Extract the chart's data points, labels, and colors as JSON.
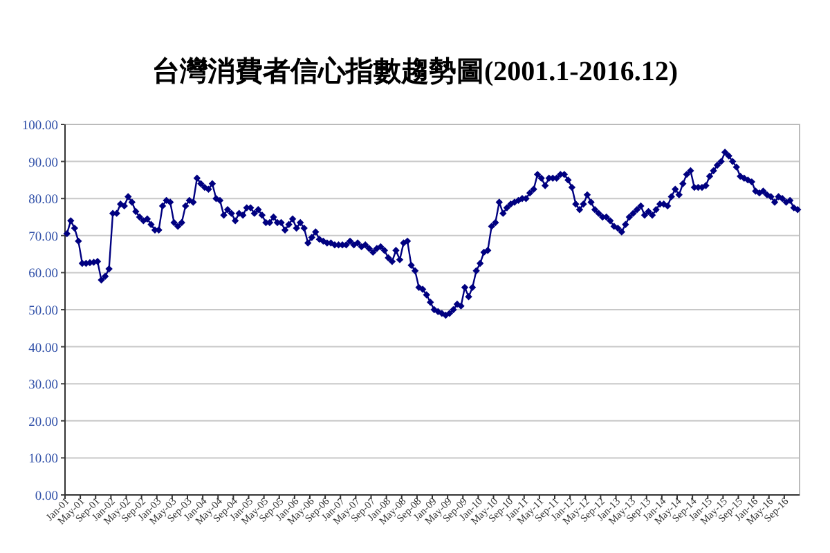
{
  "chart_data": {
    "type": "line",
    "title": "台灣消費者信心指數趨勢圖(2001.1-2016.12)",
    "categories": [
      "Jan-01",
      null,
      null,
      null,
      "May-01",
      null,
      null,
      null,
      "Sep-01",
      null,
      null,
      null,
      "Jan-02",
      null,
      null,
      null,
      "May-02",
      null,
      null,
      null,
      "Sep-02",
      null,
      null,
      null,
      "Jan-03",
      null,
      null,
      null,
      "May-03",
      null,
      null,
      null,
      "Sep-03",
      null,
      null,
      null,
      "Jan-04",
      null,
      null,
      null,
      "May-04",
      null,
      null,
      null,
      "Sep-04",
      null,
      null,
      null,
      "Jan-05",
      null,
      null,
      null,
      "May-05",
      null,
      null,
      null,
      "Sep-05",
      null,
      null,
      null,
      "Jan-06",
      null,
      null,
      null,
      "May-06",
      null,
      null,
      null,
      "Sep-06",
      null,
      null,
      null,
      "Jan-07",
      null,
      null,
      null,
      "May-07",
      null,
      null,
      null,
      "Sep-07",
      null,
      null,
      null,
      "Jan-08",
      null,
      null,
      null,
      "May-08",
      null,
      null,
      null,
      "Sep-08",
      null,
      null,
      null,
      "Jan-09",
      null,
      null,
      null,
      "May-09",
      null,
      null,
      null,
      "Sep-09",
      null,
      null,
      null,
      "Jan-10",
      null,
      null,
      null,
      "May-10",
      null,
      null,
      null,
      "Sep-10",
      null,
      null,
      null,
      "Jan-11",
      null,
      null,
      null,
      "May-11",
      null,
      null,
      null,
      "Sep-11",
      null,
      null,
      null,
      "Jan-12",
      null,
      null,
      null,
      "May-12",
      null,
      null,
      null,
      "Sep-12",
      null,
      null,
      null,
      "Jan-13",
      null,
      null,
      null,
      "May-13",
      null,
      null,
      null,
      "Sep-13",
      null,
      null,
      null,
      "Jan-14",
      null,
      null,
      null,
      "May-14",
      null,
      null,
      null,
      "Sep-14",
      null,
      null,
      null,
      "Jan-15",
      null,
      null,
      null,
      "May-15",
      null,
      null,
      null,
      "Sep-15",
      null,
      null,
      null,
      "Jan-16",
      null,
      null,
      null,
      "May-16",
      null,
      null,
      null,
      "Sep-16",
      null,
      null,
      null
    ],
    "values": [
      70.5,
      74,
      72,
      68.5,
      62.5,
      62.5,
      62.7,
      62.8,
      63,
      58,
      59,
      61,
      76,
      76,
      78.5,
      78,
      80.5,
      79,
      76.5,
      75,
      74,
      74.5,
      73,
      71.5,
      71.5,
      78,
      79.5,
      79,
      73.5,
      72.5,
      73.5,
      78,
      79.5,
      79,
      85.5,
      84,
      83,
      82.5,
      84,
      80,
      79.5,
      75.5,
      77,
      76,
      74,
      76,
      75.5,
      77.5,
      77.5,
      76,
      77,
      75.5,
      73.5,
      73.5,
      75,
      73.5,
      73.5,
      71.5,
      73,
      74.5,
      72,
      73.5,
      72,
      68,
      69.5,
      71,
      69,
      68.5,
      68,
      68,
      67.5,
      67.5,
      67.5,
      67.5,
      68.5,
      67.5,
      68,
      67,
      67.5,
      66.5,
      65.5,
      66.5,
      67,
      66,
      64,
      63,
      66,
      63.5,
      68,
      68.5,
      62,
      60.5,
      56,
      55.5,
      54,
      52,
      50,
      49.5,
      49,
      48.5,
      49,
      50,
      51.5,
      51,
      56,
      53.5,
      56,
      60.5,
      62.5,
      65.5,
      66,
      72.5,
      73.5,
      79,
      76,
      77.5,
      78.5,
      79,
      79.5,
      80,
      80,
      81.5,
      82.5,
      86.5,
      85.5,
      83.5,
      85.5,
      85.5,
      85.5,
      86.5,
      86.5,
      85,
      83,
      78.5,
      77,
      78.5,
      81,
      79,
      77,
      76,
      75,
      75,
      74,
      72.5,
      72,
      71,
      73,
      75,
      76,
      77,
      78,
      75.5,
      76.5,
      75.5,
      77,
      78.5,
      78.5,
      78,
      80.5,
      82.5,
      81,
      84,
      86.5,
      87.5,
      83,
      83,
      83,
      83.5,
      86,
      87.5,
      89,
      90,
      92.5,
      91.5,
      90,
      88.5,
      86,
      85.5,
      85,
      84.5,
      82,
      81.5,
      82,
      81,
      80.5,
      79,
      80.5,
      80,
      79,
      79.5,
      77.5,
      77
    ],
    "color": "#000080",
    "marker": "diamond",
    "grid": "y",
    "ylim": [
      0,
      100
    ],
    "yticks": [
      {
        "value": 0,
        "label": "0.00"
      },
      {
        "value": 10,
        "label": "10.00"
      },
      {
        "value": 20,
        "label": "20.00"
      },
      {
        "value": 30,
        "label": "30.00"
      },
      {
        "value": 40,
        "label": "40.00"
      },
      {
        "value": 50,
        "label": "50.00"
      },
      {
        "value": 60,
        "label": "60.00"
      },
      {
        "value": 70,
        "label": "70.00"
      },
      {
        "value": 80,
        "label": "80.00"
      },
      {
        "value": 90,
        "label": "90.00"
      },
      {
        "value": 100,
        "label": "100.00"
      }
    ]
  }
}
